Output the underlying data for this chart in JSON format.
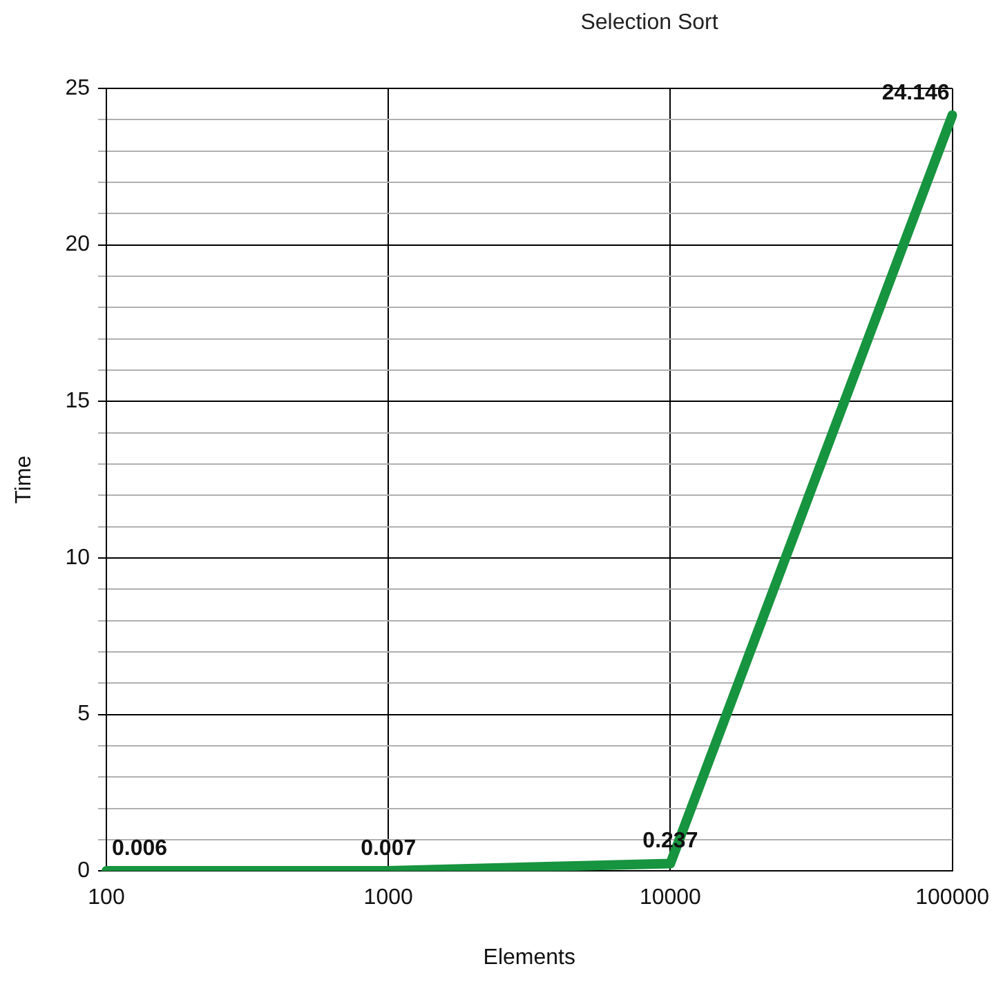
{
  "chart_data": {
    "type": "line",
    "title": "Selection Sort",
    "xlabel": "Elements",
    "ylabel": "Time",
    "categories": [
      "100",
      "1000",
      "10000",
      "100000"
    ],
    "series": [
      {
        "color": "#17943f",
        "values": [
          0.006,
          0.007,
          0.237,
          24.146
        ]
      }
    ],
    "ylim": [
      0,
      25
    ],
    "yticks": [
      0,
      {
        "value": 1,
        "label": null
      },
      {
        "value": 2,
        "label": null
      },
      {
        "value": 3,
        "label": null
      },
      {
        "value": 4,
        "label": null
      },
      5,
      {
        "value": 6,
        "label": null
      },
      {
        "value": 7,
        "label": null
      },
      {
        "value": 8,
        "label": null
      },
      {
        "value": 9,
        "label": null
      },
      10,
      {
        "value": 11,
        "label": null
      },
      {
        "value": 12,
        "label": null
      },
      {
        "value": 13,
        "label": null
      },
      {
        "value": 14,
        "label": null
      },
      15,
      {
        "value": 16,
        "label": null
      },
      {
        "value": 17,
        "label": null
      },
      {
        "value": 18,
        "label": null
      },
      {
        "value": 19,
        "label": null
      },
      20,
      {
        "value": 21,
        "label": null
      },
      {
        "value": 22,
        "label": null
      },
      {
        "value": 23,
        "label": null
      },
      {
        "value": 24,
        "label": null
      },
      25
    ],
    "grid": true,
    "legend": false,
    "marker": "none",
    "line_style": "solid",
    "data_labels": true
  }
}
